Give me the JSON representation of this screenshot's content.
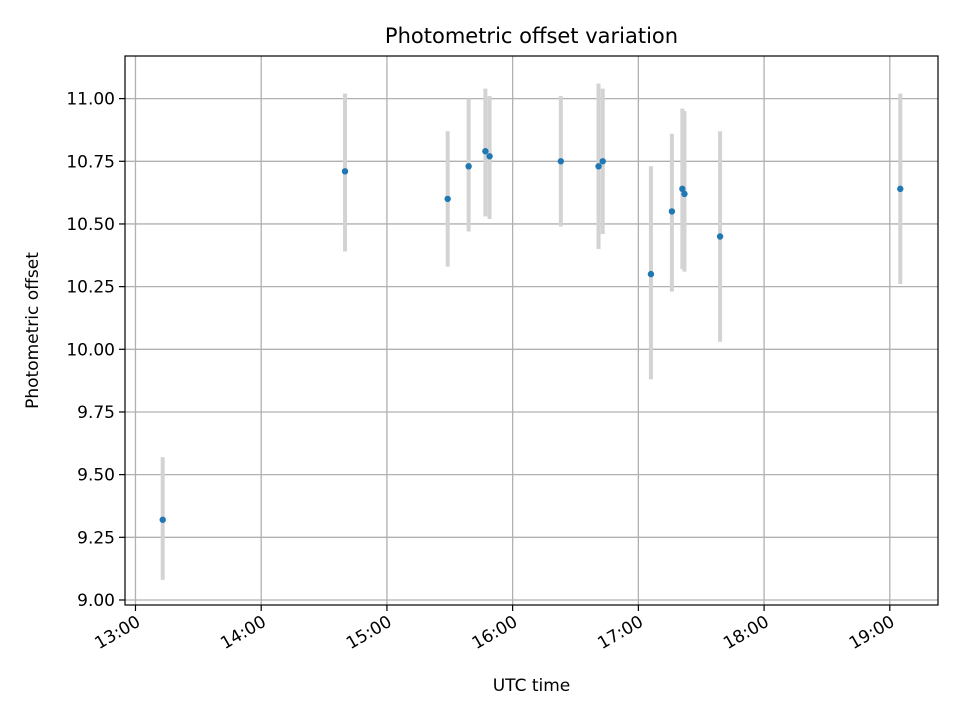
{
  "chart_data": {
    "type": "scatter",
    "title": "Photometric offset variation",
    "xlabel": "UTC time",
    "ylabel": "Photometric offset",
    "x_axis": {
      "min": "12:55",
      "max": "19:23",
      "ticks": [
        "13:00",
        "14:00",
        "15:00",
        "16:00",
        "17:00",
        "18:00",
        "19:00"
      ]
    },
    "y_axis": {
      "min": 8.98,
      "max": 11.17,
      "ticks": [
        "9.00",
        "9.25",
        "9.50",
        "9.75",
        "10.00",
        "10.25",
        "10.50",
        "10.75",
        "11.00"
      ]
    },
    "grid": true,
    "colors": {
      "point": "#1f77b4",
      "errorbar": "#d3d3d3",
      "grid": "#b0b0b0"
    },
    "points": [
      {
        "time": "13:13",
        "y": 9.32,
        "ylow": 9.08,
        "yhigh": 9.57
      },
      {
        "time": "14:40",
        "y": 10.71,
        "ylow": 10.39,
        "yhigh": 11.02
      },
      {
        "time": "15:29",
        "y": 10.6,
        "ylow": 10.33,
        "yhigh": 10.87
      },
      {
        "time": "15:39",
        "y": 10.73,
        "ylow": 10.47,
        "yhigh": 11.0
      },
      {
        "time": "15:47",
        "y": 10.79,
        "ylow": 10.53,
        "yhigh": 11.04
      },
      {
        "time": "15:49",
        "y": 10.77,
        "ylow": 10.52,
        "yhigh": 11.01
      },
      {
        "time": "16:23",
        "y": 10.75,
        "ylow": 10.49,
        "yhigh": 11.01
      },
      {
        "time": "16:41",
        "y": 10.73,
        "ylow": 10.4,
        "yhigh": 11.06
      },
      {
        "time": "16:43",
        "y": 10.75,
        "ylow": 10.46,
        "yhigh": 11.04
      },
      {
        "time": "17:06",
        "y": 10.3,
        "ylow": 9.88,
        "yhigh": 10.73
      },
      {
        "time": "17:16",
        "y": 10.55,
        "ylow": 10.23,
        "yhigh": 10.86
      },
      {
        "time": "17:21",
        "y": 10.64,
        "ylow": 10.32,
        "yhigh": 10.96
      },
      {
        "time": "17:22",
        "y": 10.62,
        "ylow": 10.31,
        "yhigh": 10.95
      },
      {
        "time": "17:39",
        "y": 10.45,
        "ylow": 10.03,
        "yhigh": 10.87
      },
      {
        "time": "19:05",
        "y": 10.64,
        "ylow": 10.26,
        "yhigh": 11.02
      }
    ]
  }
}
